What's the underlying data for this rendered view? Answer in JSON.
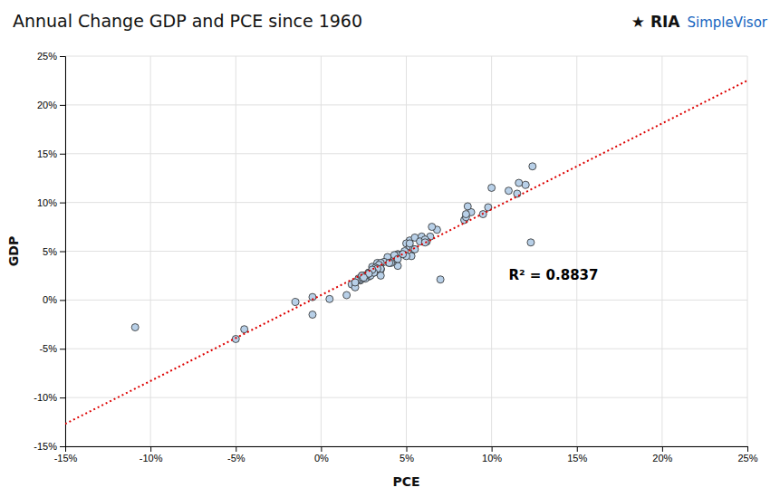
{
  "chart_data": {
    "type": "scatter",
    "title": "Annual Change GDP and PCE since 1960",
    "x_label": "PCE",
    "y_label": "GDP",
    "grid": true,
    "xlim": [
      -15,
      25
    ],
    "ylim": [
      -15,
      25
    ],
    "xticks": [
      {
        "value": -15,
        "label": "-15%"
      },
      {
        "value": -10,
        "label": "-10%"
      },
      {
        "value": -5,
        "label": "-5%"
      },
      {
        "value": 0,
        "label": "0%"
      },
      {
        "value": 5,
        "label": "5%"
      },
      {
        "value": 10,
        "label": "10%"
      },
      {
        "value": 15,
        "label": "15%"
      },
      {
        "value": 20,
        "label": "20%"
      },
      {
        "value": 25,
        "label": "25%"
      }
    ],
    "yticks": [
      {
        "value": -15,
        "label": "-15%"
      },
      {
        "value": -10,
        "label": "-10%"
      },
      {
        "value": -5,
        "label": "-5%"
      },
      {
        "value": 0,
        "label": "0%"
      },
      {
        "value": 5,
        "label": "5%"
      },
      {
        "value": 10,
        "label": "10%"
      },
      {
        "value": 15,
        "label": "15%"
      },
      {
        "value": 20,
        "label": "20%"
      },
      {
        "value": 25,
        "label": "25%"
      }
    ],
    "series": [
      {
        "type": "scatter",
        "marker": "circle",
        "color": "#b8d0e8",
        "x": [
          3.5,
          4.3,
          5.2,
          5.0,
          6.8,
          6.4,
          5.5,
          5.9,
          8.8,
          8.4,
          8.5,
          9.5,
          10.0,
          8.6,
          12.4,
          11.0,
          12.0,
          11.6,
          9.8,
          8.5,
          5.8,
          11.5,
          6.5,
          5.2,
          6.2,
          5.4,
          4.8,
          5.3,
          6.1,
          4.9,
          3.9,
          4.5,
          5.2,
          5.0,
          4.5,
          4.0,
          4.2,
          4.3,
          3.3,
          3.7,
          4.5,
          3.4,
          3.2,
          4.1,
          6.1,
          4.0,
          5.5,
          4.8,
          3.5,
          -0.5,
          3.0,
          2.4,
          3.4,
          3.5,
          3.4,
          2.8,
          2.5,
          2.3,
          3.2,
          3.1,
          1.8,
          2.8,
          3.5,
          2.7,
          3.2,
          3.3,
          2.6,
          2.9,
          3.1,
          2.6,
          2.3,
          2.5,
          2.2,
          2.4,
          2.8,
          2.7,
          3.0,
          4.3,
          2.4,
          2.8,
          4.5,
          1.5,
          0.5,
          2.0,
          2.5,
          2.0,
          -0.5,
          -1.5,
          -4.5,
          -5.0,
          -10.9,
          12.3,
          7.0,
          3.5
        ],
        "values": [
          3.2,
          4.1,
          6.1,
          5.8,
          7.2,
          6.5,
          6.4,
          6.5,
          9.0,
          8.2,
          8.5,
          8.8,
          11.5,
          9.6,
          13.7,
          11.2,
          11.8,
          12.0,
          9.5,
          8.8,
          6.0,
          10.9,
          7.5,
          5.5,
          6.0,
          5.2,
          4.7,
          4.5,
          6.2,
          5.0,
          4.4,
          3.5,
          5.8,
          4.5,
          4.7,
          3.8,
          3.9,
          4.2,
          3.8,
          3.9,
          4.6,
          3.4,
          3.3,
          3.8,
          5.9,
          3.8,
          5.2,
          4.7,
          3.1,
          -1.5,
          3.4,
          2.5,
          3.5,
          3.8,
          3.6,
          2.8,
          2.5,
          2.0,
          3.3,
          2.8,
          1.6,
          2.4,
          3.2,
          2.4,
          3.0,
          3.2,
          2.2,
          2.5,
          2.8,
          2.5,
          2.1,
          2.4,
          2.2,
          2.3,
          2.8,
          2.6,
          3.1,
          4.6,
          2.5,
          2.7,
          4.2,
          0.5,
          0.1,
          1.3,
          2.3,
          1.8,
          0.3,
          -0.2,
          -3.0,
          -4.0,
          -2.8,
          5.9,
          2.1,
          2.5
        ]
      },
      {
        "type": "line",
        "line_style": "dotted",
        "color": "#dd0000",
        "x": [
          -15,
          25
        ],
        "values": [
          -12.7,
          22.5
        ]
      }
    ],
    "annotations": [
      {
        "text": "R² = 0.8837",
        "x": 11,
        "y": 2.5
      },
      {
        "text": "★ RIA"
      },
      {
        "text": "SimpleVisor",
        "color": "#1565c0"
      }
    ]
  }
}
